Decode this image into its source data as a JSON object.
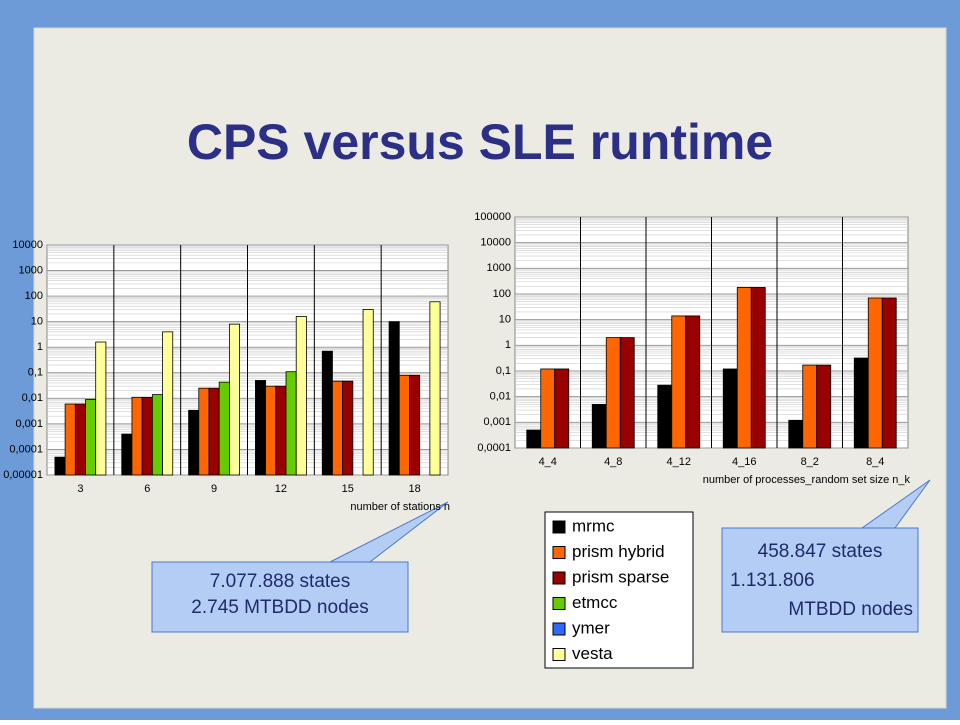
{
  "title": "CPS versus SLE runtime",
  "legend": [
    {
      "name": "mrmc",
      "color": "#000000"
    },
    {
      "name": "prism hybrid",
      "color": "#ff6600"
    },
    {
      "name": "prism sparse",
      "color": "#990000"
    },
    {
      "name": "etmcc",
      "color": "#66cc00"
    },
    {
      "name": "ymer",
      "color": "#3366ff"
    },
    {
      "name": "vesta",
      "color": "#ffff99"
    }
  ],
  "chart_data": [
    {
      "type": "bar",
      "log_scale": true,
      "grid": true,
      "x_label": "number of stations n",
      "categories": [
        "3",
        "6",
        "9",
        "12",
        "15",
        "18"
      ],
      "ylim": [
        1e-05,
        10000
      ],
      "yticks": [
        10000,
        1000,
        100,
        10,
        1,
        {
          "value": 0.1,
          "label": "0,1"
        },
        {
          "value": 0.01,
          "label": "0,01"
        },
        {
          "value": 0.001,
          "label": "0,001"
        },
        {
          "value": 0.0001,
          "label": "0,0001"
        },
        {
          "value": 1e-05,
          "label": "0,00001"
        }
      ],
      "series": [
        {
          "values": [
            5e-05,
            0.0004,
            0.0034,
            0.05,
            0.7,
            10
          ]
        },
        {
          "values": [
            0.006,
            0.011,
            0.025,
            0.03,
            0.047,
            0.08
          ]
        },
        {
          "values": [
            0.006,
            0.011,
            0.025,
            0.03,
            0.047,
            0.08
          ]
        },
        {
          "values": [
            0.009,
            0.014,
            0.043,
            0.11,
            null,
            null
          ]
        },
        {
          "values": [
            null,
            null,
            null,
            null,
            null,
            null
          ]
        },
        {
          "values": [
            1.6,
            4,
            8,
            16,
            30,
            60
          ]
        }
      ]
    },
    {
      "type": "bar",
      "log_scale": true,
      "grid": true,
      "x_label": "number of processes_random set size n_k",
      "categories": [
        "4_4",
        "4_8",
        "4_12",
        "4_16",
        "8_2",
        "8_4"
      ],
      "ylim": [
        0.0001,
        100000
      ],
      "yticks": [
        100000,
        10000,
        1000,
        100,
        10,
        1,
        {
          "value": 0.1,
          "label": "0,1"
        },
        {
          "value": 0.01,
          "label": "0,01"
        },
        {
          "value": 0.001,
          "label": "0,001"
        },
        {
          "value": 0.0001,
          "label": "0,0001"
        }
      ],
      "series": [
        {
          "values": [
            0.0005,
            0.005,
            0.028,
            0.12,
            0.0012,
            0.32
          ]
        },
        {
          "values": [
            0.12,
            2,
            14,
            180,
            0.17,
            70
          ]
        },
        {
          "values": [
            0.12,
            2,
            14,
            180,
            0.17,
            70
          ]
        },
        {
          "values": [
            null,
            null,
            null,
            null,
            null,
            null
          ]
        },
        {
          "values": [
            null,
            null,
            null,
            null,
            null,
            null
          ]
        },
        {
          "values": [
            null,
            null,
            null,
            null,
            null,
            null
          ]
        }
      ]
    }
  ],
  "callouts": [
    {
      "lines": [
        "7.077.888 states",
        "2.745 MTBDD nodes"
      ]
    },
    {
      "lines": [
        "458.847 states",
        "1.131.806",
        "MTBDD nodes"
      ]
    }
  ]
}
